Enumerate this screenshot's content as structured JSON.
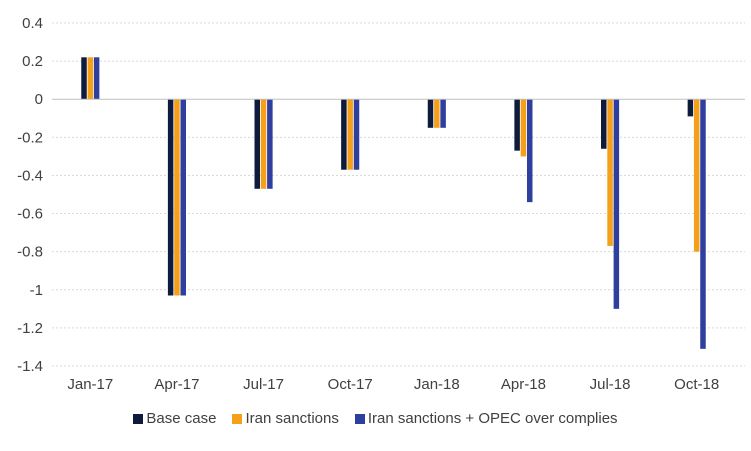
{
  "chart_data": {
    "type": "bar",
    "categories": [
      "Jan-17",
      "Apr-17",
      "Jul-17",
      "Oct-17",
      "Jan-18",
      "Apr-18",
      "Jul-18",
      "Oct-18"
    ],
    "series": [
      {
        "name": "Base case",
        "color": "#0f1b3d",
        "values": [
          0.22,
          -1.03,
          -0.47,
          -0.37,
          -0.15,
          -0.27,
          -0.26,
          -0.09
        ]
      },
      {
        "name": "Iran sanctions",
        "color": "#f5a01a",
        "values": [
          0.22,
          -1.03,
          -0.47,
          -0.37,
          -0.15,
          -0.3,
          -0.77,
          -0.8
        ]
      },
      {
        "name": "Iran sanctions + OPEC over complies",
        "color": "#2e3f9e",
        "values": [
          0.22,
          -1.03,
          -0.47,
          -0.37,
          -0.15,
          -0.54,
          -1.1,
          -1.31
        ]
      }
    ],
    "yticks": [
      "0.4",
      "0.2",
      "0",
      "-0.2",
      "-0.4",
      "-0.6",
      "-0.8",
      "-1",
      "-1.2",
      "-1.4"
    ],
    "ylim": [
      -1.4,
      0.4
    ],
    "grid": true,
    "legend_position": "bottom",
    "title": "",
    "xlabel": "",
    "ylabel": ""
  }
}
